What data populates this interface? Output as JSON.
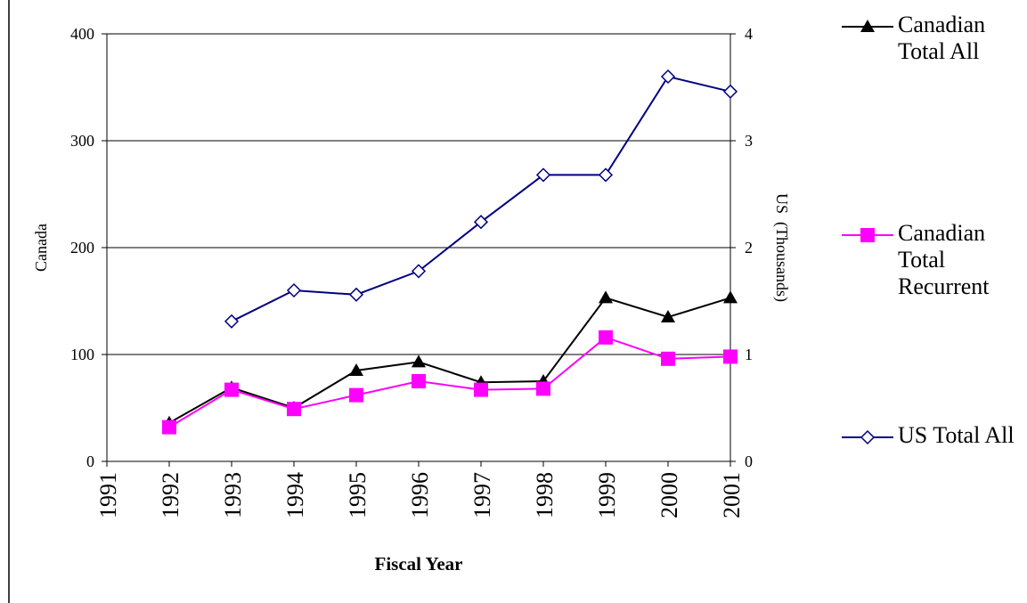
{
  "chart_data": {
    "type": "line",
    "x_label": "Fiscal Year",
    "y_label": "Canada",
    "y2_label": "US  (Thousands)",
    "x": [
      1992,
      1993,
      1994,
      1995,
      1996,
      1997,
      1998,
      1999,
      2000,
      2001
    ],
    "xlim": [
      1991,
      2001
    ],
    "xticks": [
      1991,
      1992,
      1993,
      1994,
      1995,
      1996,
      1997,
      1998,
      1999,
      2000,
      2001
    ],
    "ylim": [
      0,
      400
    ],
    "yticks": [
      0,
      100,
      200,
      300,
      400
    ],
    "y2lim": [
      0,
      4
    ],
    "y2ticks": [
      0,
      1,
      2,
      3,
      4
    ],
    "grid": true,
    "legend": "right",
    "series": [
      {
        "name": "Canadian Total All",
        "color": "#000000",
        "marker": "triangle",
        "values": [
          36,
          69,
          50,
          85,
          93,
          74,
          75,
          153,
          135,
          153
        ]
      },
      {
        "name": "Canadian Total Recurrent",
        "color": "#ff00ff",
        "marker": "square",
        "values": [
          32,
          67,
          49,
          62,
          75,
          67,
          68,
          116,
          96,
          98
        ]
      },
      {
        "name": "US Total All",
        "color": "#000080",
        "marker": "diamond",
        "axis": "y2",
        "values": [
          null,
          1.31,
          1.6,
          1.56,
          1.78,
          2.24,
          2.68,
          2.68,
          3.6,
          3.46
        ]
      }
    ]
  }
}
